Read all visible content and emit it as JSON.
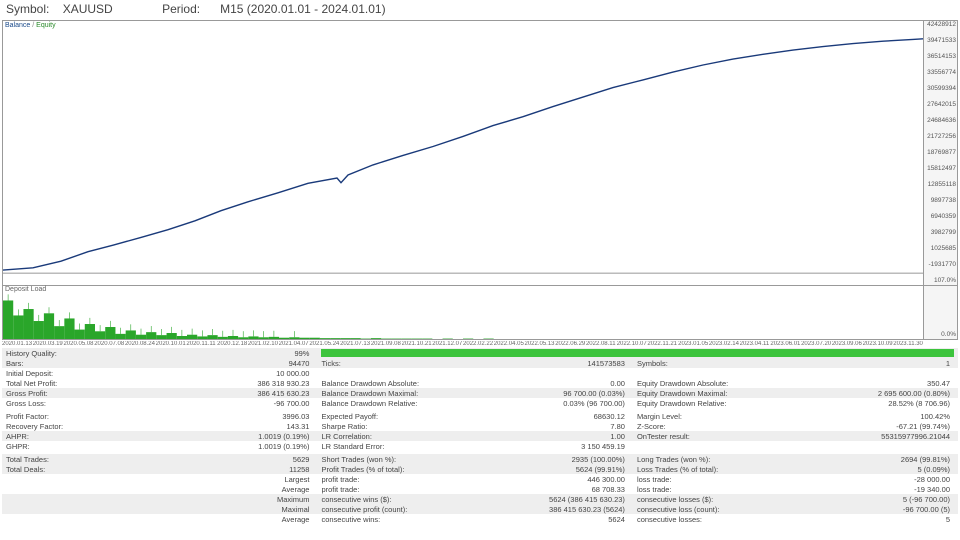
{
  "header": {
    "symbol_label": "Symbol:",
    "symbol": "XAUUSD",
    "period_label": "Period:",
    "period": "M15 (2020.01.01 - 2024.01.01)"
  },
  "chart": {
    "balance_label": "Balance",
    "equity_label": "Equity",
    "line_color": "#1a3a7a",
    "y_ticks": [
      "42428912",
      "39471533",
      "36514153",
      "33556774",
      "30599394",
      "27642015",
      "24684636",
      "21727256",
      "18769877",
      "15812497",
      "12855118",
      "9897738",
      "6940359",
      "3982799",
      "1025685",
      "-1931770",
      "107.0%"
    ],
    "equity_points": [
      [
        0,
        5000
      ],
      [
        30,
        9000
      ],
      [
        58,
        20000
      ],
      [
        85,
        36000
      ],
      [
        110,
        47000
      ],
      [
        138,
        60000
      ],
      [
        165,
        73000
      ],
      [
        192,
        88000
      ],
      [
        218,
        105000
      ],
      [
        245,
        120000
      ],
      [
        275,
        135000
      ],
      [
        305,
        151000
      ],
      [
        334,
        160000
      ],
      [
        338,
        152000
      ],
      [
        345,
        165000
      ],
      [
        370,
        182000
      ],
      [
        400,
        198000
      ],
      [
        430,
        213000
      ],
      [
        460,
        230000
      ],
      [
        490,
        248000
      ],
      [
        520,
        263000
      ],
      [
        550,
        280000
      ],
      [
        580,
        296000
      ],
      [
        610,
        312000
      ],
      [
        640,
        325000
      ],
      [
        670,
        338000
      ],
      [
        700,
        350000
      ],
      [
        730,
        360000
      ],
      [
        760,
        368000
      ],
      [
        790,
        375000
      ],
      [
        820,
        381000
      ],
      [
        850,
        386000
      ],
      [
        880,
        390000
      ],
      [
        910,
        393000
      ],
      [
        920,
        394000
      ]
    ],
    "y_min": -20000,
    "y_max": 424000
  },
  "deposit_load": {
    "label": "Deposit Load",
    "right_label": "0.0%",
    "fill_color": "#2aa62a",
    "bars": [
      90,
      55,
      70,
      42,
      60,
      30,
      48,
      22,
      35,
      18,
      28,
      12,
      20,
      10,
      16,
      9,
      14,
      7,
      10,
      6,
      9,
      5,
      7,
      4,
      6,
      4,
      5,
      3,
      4,
      3,
      3,
      2,
      2,
      2,
      2,
      1,
      2,
      1,
      1,
      1,
      1,
      1,
      0,
      1,
      0,
      1,
      0,
      1,
      0,
      0,
      0,
      0,
      0,
      0,
      0,
      0,
      0,
      0,
      0,
      0,
      0,
      0,
      0,
      0,
      0,
      0,
      0,
      0,
      0,
      0,
      0,
      0,
      0,
      0,
      0,
      0,
      0,
      0,
      0,
      0,
      0,
      0,
      0,
      0,
      0,
      0,
      0,
      0,
      0,
      0
    ],
    "bar_max": 100
  },
  "xaxis": [
    "2020.01.13",
    "2020.03.19",
    "2020.05.08",
    "2020.07.08",
    "2020.08.24",
    "2020.10.01",
    "2020.11.11",
    "2020.12.18",
    "2021.02.10",
    "2021.04.07",
    "2021.05.24",
    "2021.07.13",
    "2021.09.08",
    "2021.10.21",
    "2021.12.07",
    "2022.02.22",
    "2022.04.05",
    "2022.05.13",
    "2022.06.29",
    "2022.08.11",
    "2022.10.07",
    "2022.11.21",
    "2023.01.05",
    "2023.02.14",
    "2023.04.11",
    "2023.06.01",
    "2023.07.20",
    "2023.09.06",
    "2023.10.09",
    "2023.11.30"
  ],
  "stats": {
    "c1": [
      [
        "History Quality:",
        "99%"
      ],
      [
        "Bars:",
        "94470"
      ],
      [
        "Initial Deposit:",
        "10 000.00"
      ],
      [
        "Total Net Profit:",
        "386 318 930.23"
      ],
      [
        "Gross Profit:",
        "386 415 630.23"
      ],
      [
        "Gross Loss:",
        "-96 700.00"
      ],
      null,
      [
        "Profit Factor:",
        "3996.03"
      ],
      [
        "Recovery Factor:",
        "143.31"
      ],
      [
        "AHPR:",
        "1.0019 (0.19%)"
      ],
      [
        "GHPR:",
        "1.0019 (0.19%)"
      ],
      null,
      [
        "Total Trades:",
        "5629"
      ],
      [
        "Total Deals:",
        "11258"
      ],
      [
        "",
        "Largest"
      ],
      [
        "",
        "Average"
      ],
      [
        "",
        "Maximum"
      ],
      [
        "",
        "Maximal"
      ],
      [
        "",
        "Average"
      ]
    ],
    "c2": [
      [
        "",
        ""
      ],
      [
        "Ticks:",
        "141573583"
      ],
      [
        "",
        ""
      ],
      [
        "Balance Drawdown Absolute:",
        "0.00"
      ],
      [
        "Balance Drawdown Maximal:",
        "96 700.00 (0.03%)"
      ],
      [
        "Balance Drawdown Relative:",
        "0.03% (96 700.00)"
      ],
      null,
      [
        "Expected Payoff:",
        "68630.12"
      ],
      [
        "Sharpe Ratio:",
        "7.80"
      ],
      [
        "LR Correlation:",
        "1.00"
      ],
      [
        "LR Standard Error:",
        "3 150 459.19"
      ],
      null,
      [
        "Short Trades (won %):",
        "2935 (100.00%)"
      ],
      [
        "Profit Trades (% of total):",
        "5624 (99.91%)"
      ],
      [
        "profit trade:",
        "446 300.00"
      ],
      [
        "profit trade:",
        "68 708.33"
      ],
      [
        "consecutive wins ($):",
        "5624 (386 415 630.23)"
      ],
      [
        "consecutive profit (count):",
        "386 415 630.23 (5624)"
      ],
      [
        "consecutive wins:",
        "5624"
      ]
    ],
    "c3": [
      [
        "",
        ""
      ],
      [
        "Symbols:",
        "1"
      ],
      [
        "",
        ""
      ],
      [
        "Equity Drawdown Absolute:",
        "350.47"
      ],
      [
        "Equity Drawdown Maximal:",
        "2 695 600.00 (0.80%)"
      ],
      [
        "Equity Drawdown Relative:",
        "28.52% (8 706.96)"
      ],
      null,
      [
        "Margin Level:",
        "100.42%"
      ],
      [
        "Z-Score:",
        "-67.21 (99.74%)"
      ],
      [
        "OnTester result:",
        "55315977996.21044"
      ],
      [
        "",
        ""
      ],
      null,
      [
        "Long Trades (won %):",
        "2694 (99.81%)"
      ],
      [
        "Loss Trades (% of total):",
        "5 (0.09%)"
      ],
      [
        "loss trade:",
        "-28 000.00"
      ],
      [
        "loss trade:",
        "-19 340.00"
      ],
      [
        "consecutive losses ($):",
        "5 (-96 700.00)"
      ],
      [
        "consecutive loss (count):",
        "-96 700.00 (5)"
      ],
      [
        "consecutive losses:",
        "5"
      ]
    ],
    "band_rows": [
      0,
      1,
      4,
      9,
      12,
      13,
      16,
      17
    ]
  }
}
